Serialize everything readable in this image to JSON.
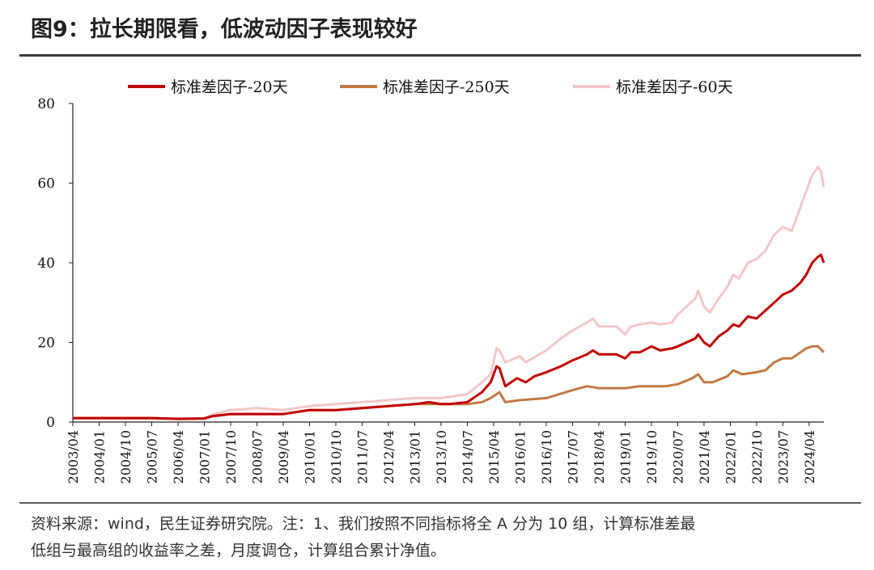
{
  "title": "图9：拉长期限看，低波动因子表现较好",
  "footnote": {
    "line1": "资料来源：wind，民生证券研究院。注：1、我们按照不同指标将全 A 分为 10 组，计算标准差最",
    "line2": "低组与最高组的收益率之差，月度调仓，计算组合累计净值。"
  },
  "chart_data": {
    "type": "line",
    "title": "",
    "xlabel": "",
    "ylabel": "",
    "ylim": [
      0,
      80
    ],
    "yticks": [
      0,
      20,
      40,
      60,
      80
    ],
    "x_tick_labels": [
      "2003/04",
      "2004/01",
      "2004/10",
      "2005/07",
      "2006/04",
      "2007/01",
      "2007/10",
      "2008/07",
      "2009/04",
      "2010/01",
      "2010/10",
      "2011/07",
      "2012/04",
      "2013/01",
      "2013/10",
      "2014/07",
      "2015/04",
      "2016/01",
      "2016/10",
      "2017/07",
      "2018/04",
      "2019/01",
      "2019/10",
      "2020/07",
      "2021/04",
      "2022/01",
      "2022/10",
      "2023/07",
      "2024/04"
    ],
    "x_range": [
      "2003/04",
      "2024/09"
    ],
    "legend_position": "top",
    "grid": false,
    "series": [
      {
        "name": "标准差因子-20天",
        "color": "#C00000",
        "points": [
          [
            "2003/04",
            1.0
          ],
          [
            "2004/01",
            1.0
          ],
          [
            "2004/10",
            1.0
          ],
          [
            "2005/07",
            1.0
          ],
          [
            "2006/04",
            0.8
          ],
          [
            "2007/01",
            0.9
          ],
          [
            "2007/04",
            1.5
          ],
          [
            "2007/10",
            2.0
          ],
          [
            "2008/07",
            2.0
          ],
          [
            "2009/04",
            2.0
          ],
          [
            "2010/01",
            3.0
          ],
          [
            "2010/10",
            3.0
          ],
          [
            "2011/07",
            3.5
          ],
          [
            "2012/04",
            4.0
          ],
          [
            "2013/01",
            4.5
          ],
          [
            "2013/06",
            5.0
          ],
          [
            "2013/10",
            4.5
          ],
          [
            "2014/01",
            4.5
          ],
          [
            "2014/07",
            5.0
          ],
          [
            "2014/12",
            7.5
          ],
          [
            "2015/03",
            10.0
          ],
          [
            "2015/05",
            14.0
          ],
          [
            "2015/06",
            13.5
          ],
          [
            "2015/08",
            9.0
          ],
          [
            "2015/12",
            11.0
          ],
          [
            "2016/03",
            10.0
          ],
          [
            "2016/06",
            11.5
          ],
          [
            "2016/10",
            12.5
          ],
          [
            "2017/03",
            14.0
          ],
          [
            "2017/07",
            15.5
          ],
          [
            "2017/12",
            17.0
          ],
          [
            "2018/02",
            18.0
          ],
          [
            "2018/04",
            17.0
          ],
          [
            "2018/10",
            17.0
          ],
          [
            "2019/01",
            16.0
          ],
          [
            "2019/03",
            17.5
          ],
          [
            "2019/06",
            17.5
          ],
          [
            "2019/10",
            19.0
          ],
          [
            "2020/01",
            18.0
          ],
          [
            "2020/05",
            18.5
          ],
          [
            "2020/07",
            19.0
          ],
          [
            "2020/10",
            20.0
          ],
          [
            "2021/01",
            21.0
          ],
          [
            "2021/02",
            22.0
          ],
          [
            "2021/04",
            20.0
          ],
          [
            "2021/06",
            19.0
          ],
          [
            "2021/09",
            21.5
          ],
          [
            "2021/12",
            23.0
          ],
          [
            "2022/02",
            24.5
          ],
          [
            "2022/04",
            24.0
          ],
          [
            "2022/07",
            26.5
          ],
          [
            "2022/10",
            26.0
          ],
          [
            "2023/01",
            28.0
          ],
          [
            "2023/04",
            30.0
          ],
          [
            "2023/07",
            32.0
          ],
          [
            "2023/10",
            33.0
          ],
          [
            "2024/01",
            35.0
          ],
          [
            "2024/03",
            37.0
          ],
          [
            "2024/05",
            40.0
          ],
          [
            "2024/07",
            41.5
          ],
          [
            "2024/08",
            42.0
          ],
          [
            "2024/09",
            40.0
          ]
        ]
      },
      {
        "name": "标准差因子-250天",
        "color": "#C07A45",
        "points": [
          [
            "2003/04",
            1.0
          ],
          [
            "2004/01",
            1.0
          ],
          [
            "2004/10",
            1.0
          ],
          [
            "2005/07",
            1.0
          ],
          [
            "2006/04",
            0.8
          ],
          [
            "2007/01",
            0.9
          ],
          [
            "2007/04",
            1.5
          ],
          [
            "2007/10",
            2.0
          ],
          [
            "2008/07",
            2.0
          ],
          [
            "2009/04",
            2.0
          ],
          [
            "2010/01",
            3.0
          ],
          [
            "2010/10",
            3.0
          ],
          [
            "2011/07",
            3.5
          ],
          [
            "2012/04",
            4.0
          ],
          [
            "2013/01",
            4.5
          ],
          [
            "2013/10",
            4.5
          ],
          [
            "2014/07",
            4.5
          ],
          [
            "2014/12",
            5.0
          ],
          [
            "2015/03",
            6.0
          ],
          [
            "2015/06",
            7.5
          ],
          [
            "2015/08",
            5.0
          ],
          [
            "2016/01",
            5.5
          ],
          [
            "2016/10",
            6.0
          ],
          [
            "2017/07",
            8.0
          ],
          [
            "2017/12",
            9.0
          ],
          [
            "2018/04",
            8.5
          ],
          [
            "2018/10",
            8.5
          ],
          [
            "2019/01",
            8.5
          ],
          [
            "2019/06",
            9.0
          ],
          [
            "2019/10",
            9.0
          ],
          [
            "2020/03",
            9.0
          ],
          [
            "2020/07",
            9.5
          ],
          [
            "2020/12",
            11.0
          ],
          [
            "2021/02",
            12.0
          ],
          [
            "2021/04",
            10.0
          ],
          [
            "2021/07",
            10.0
          ],
          [
            "2021/12",
            11.5
          ],
          [
            "2022/02",
            13.0
          ],
          [
            "2022/05",
            12.0
          ],
          [
            "2022/10",
            12.5
          ],
          [
            "2023/01",
            13.0
          ],
          [
            "2023/04",
            15.0
          ],
          [
            "2023/07",
            16.0
          ],
          [
            "2023/10",
            16.0
          ],
          [
            "2024/01",
            17.5
          ],
          [
            "2024/03",
            18.5
          ],
          [
            "2024/05",
            19.0
          ],
          [
            "2024/07",
            19.0
          ],
          [
            "2024/09",
            17.5
          ]
        ]
      },
      {
        "name": "标准差因子-60天",
        "color": "#F2C7C7",
        "points": [
          [
            "2003/04",
            1.0
          ],
          [
            "2004/01",
            1.0
          ],
          [
            "2004/10",
            1.0
          ],
          [
            "2005/07",
            1.0
          ],
          [
            "2006/04",
            0.9
          ],
          [
            "2007/01",
            1.0
          ],
          [
            "2007/04",
            2.0
          ],
          [
            "2007/10",
            3.0
          ],
          [
            "2008/07",
            3.5
          ],
          [
            "2009/04",
            3.0
          ],
          [
            "2010/01",
            4.0
          ],
          [
            "2010/10",
            4.5
          ],
          [
            "2011/07",
            5.0
          ],
          [
            "2012/04",
            5.5
          ],
          [
            "2013/01",
            6.0
          ],
          [
            "2013/10",
            6.0
          ],
          [
            "2014/07",
            7.0
          ],
          [
            "2014/12",
            10.0
          ],
          [
            "2015/03",
            12.0
          ],
          [
            "2015/05",
            18.5
          ],
          [
            "2015/06",
            18.0
          ],
          [
            "2015/08",
            15.0
          ],
          [
            "2016/01",
            16.5
          ],
          [
            "2016/03",
            15.0
          ],
          [
            "2016/10",
            18.0
          ],
          [
            "2017/03",
            21.0
          ],
          [
            "2017/07",
            23.0
          ],
          [
            "2017/12",
            25.0
          ],
          [
            "2018/02",
            26.0
          ],
          [
            "2018/04",
            24.0
          ],
          [
            "2018/10",
            24.0
          ],
          [
            "2019/01",
            22.0
          ],
          [
            "2019/03",
            24.0
          ],
          [
            "2019/06",
            24.5
          ],
          [
            "2019/10",
            25.0
          ],
          [
            "2020/01",
            24.5
          ],
          [
            "2020/05",
            25.0
          ],
          [
            "2020/07",
            27.0
          ],
          [
            "2020/10",
            29.0
          ],
          [
            "2021/01",
            31.0
          ],
          [
            "2021/02",
            33.0
          ],
          [
            "2021/04",
            29.0
          ],
          [
            "2021/06",
            27.5
          ],
          [
            "2021/09",
            31.0
          ],
          [
            "2021/12",
            34.0
          ],
          [
            "2022/02",
            37.0
          ],
          [
            "2022/04",
            36.0
          ],
          [
            "2022/07",
            40.0
          ],
          [
            "2022/10",
            41.0
          ],
          [
            "2023/01",
            43.0
          ],
          [
            "2023/04",
            47.0
          ],
          [
            "2023/07",
            49.0
          ],
          [
            "2023/10",
            48.0
          ],
          [
            "2024/01",
            54.0
          ],
          [
            "2024/03",
            58.0
          ],
          [
            "2024/05",
            62.0
          ],
          [
            "2024/07",
            64.0
          ],
          [
            "2024/08",
            63.0
          ],
          [
            "2024/09",
            59.0
          ]
        ]
      }
    ]
  }
}
